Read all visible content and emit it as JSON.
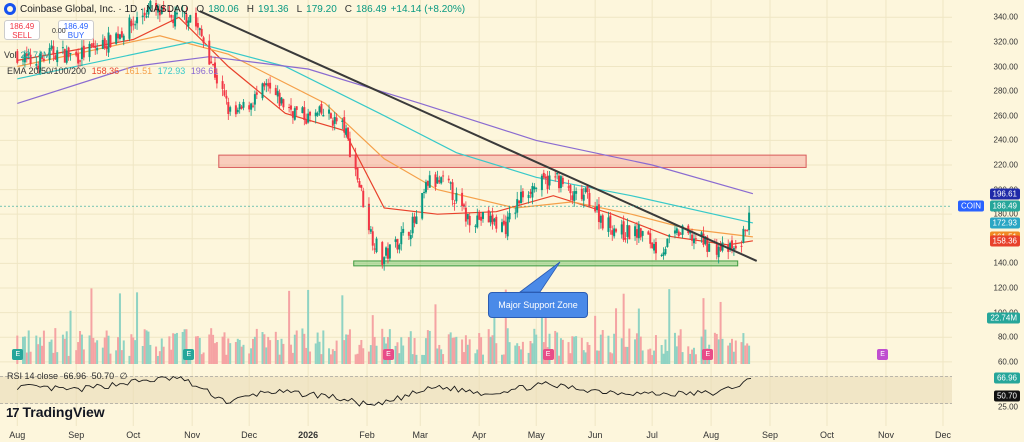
{
  "header": {
    "title": "Coinbase Global, Inc. · 1D · NASDAQ",
    "o_label": "O",
    "o": "180.06",
    "h_label": "H",
    "h": "191.36",
    "l_label": "L",
    "l": "179.20",
    "c_label": "C",
    "c": "186.49",
    "change": "+14.14 (+8.20%)"
  },
  "trade": {
    "sell_price": "186.49",
    "sell_label": "SELL",
    "buy_price": "186.49",
    "buy_label": "BUY",
    "spread": "0.00"
  },
  "volume": {
    "label": "Vol",
    "value": "22.74M"
  },
  "ema": {
    "label": "EMA 20/50/100/200",
    "v20": "158.36",
    "v50": "161.51",
    "v100": "172.93",
    "v200": "196.61",
    "c20": "#e8412b",
    "c50": "#f5a04a",
    "c100": "#37c9c9",
    "c200": "#8a6bd1"
  },
  "rsi": {
    "label": "RSI 14 close",
    "v1": "66.96",
    "v2": "50.70",
    "v3": "∅"
  },
  "annotation": {
    "text": "Major Support Zone"
  },
  "brand": {
    "mark": "17",
    "name": "TradingView"
  },
  "symbol_tag": "COIN",
  "event_markers": [
    {
      "label": "E",
      "color": "#26a69a",
      "x": "2025-08-01"
    },
    {
      "label": "E",
      "color": "#26a69a",
      "x": "2025-10-30"
    },
    {
      "label": "E",
      "color": "#e84c88",
      "x": "2026-02-12"
    },
    {
      "label": "E",
      "color": "#e84c88",
      "x": "2026-05-07"
    },
    {
      "label": "E",
      "color": "#e84c88",
      "x": "2026-07-30"
    },
    {
      "label": "E",
      "color": "#c04ed0",
      "x": "2026-10-30"
    }
  ],
  "chart_data": {
    "type": "line",
    "x_axis": {
      "ticks": [
        "Aug",
        "Sep",
        "Oct",
        "Nov",
        "Dec",
        "2026",
        "Feb",
        "Mar",
        "Apr",
        "May",
        "Jun",
        "Jul",
        "Aug",
        "Sep",
        "Oct",
        "Nov",
        "Dec"
      ],
      "tick_dates": [
        "2025-08-01",
        "2025-09-01",
        "2025-10-01",
        "2025-11-01",
        "2025-12-01",
        "2026-01-01",
        "2026-02-01",
        "2026-03-01",
        "2026-04-01",
        "2026-05-01",
        "2026-06-01",
        "2026-07-01",
        "2026-08-01",
        "2026-09-01",
        "2026-10-01",
        "2026-11-01",
        "2026-12-01"
      ],
      "range": [
        "2025-07-25",
        "2026-12-31"
      ]
    },
    "price_axis": {
      "ticks": [
        "340.00",
        "320.00",
        "300.00",
        "280.00",
        "260.00",
        "240.00",
        "220.00",
        "200.00",
        "180.00",
        "160.00",
        "140.00",
        "120.00",
        "100.00",
        "80.00",
        "60.00"
      ],
      "range": [
        55,
        350
      ],
      "tag_values": [
        {
          "label": "196.61",
          "value": 196.61,
          "color": "#1f2aa8"
        },
        {
          "label": "186.49",
          "value": 186.49,
          "color": "#26a69a"
        },
        {
          "label": "172.93",
          "value": 172.93,
          "color": "#2aa6c4"
        },
        {
          "label": "161.51",
          "value": 161.51,
          "color": "#f08a24"
        },
        {
          "label": "158.36",
          "value": 158.36,
          "color": "#e8412b"
        },
        {
          "label": "22.74M",
          "value": 96,
          "color": "#26a69a"
        }
      ]
    },
    "rsi_axis": {
      "ticks": [
        "66.96",
        "50.70",
        "25.00"
      ],
      "range": [
        15,
        85
      ],
      "band": [
        30,
        70
      ]
    },
    "close": [
      [
        "2025-08-01",
        310
      ],
      [
        "2025-08-10",
        302
      ],
      [
        "2025-08-20",
        312
      ],
      [
        "2025-09-01",
        308
      ],
      [
        "2025-09-15",
        318
      ],
      [
        "2025-10-01",
        335
      ],
      [
        "2025-10-10",
        348
      ],
      [
        "2025-10-20",
        338
      ],
      [
        "2025-10-31",
        342
      ],
      [
        "2025-11-08",
        318
      ],
      [
        "2025-11-15",
        285
      ],
      [
        "2025-11-22",
        258
      ],
      [
        "2025-12-01",
        270
      ],
      [
        "2025-12-10",
        282
      ],
      [
        "2025-12-20",
        268
      ],
      [
        "2026-01-01",
        258
      ],
      [
        "2026-01-10",
        262
      ],
      [
        "2026-01-20",
        250
      ],
      [
        "2026-01-27",
        210
      ],
      [
        "2026-02-03",
        165
      ],
      [
        "2026-02-09",
        143
      ],
      [
        "2026-02-18",
        160
      ],
      [
        "2026-02-27",
        175
      ],
      [
        "2026-03-05",
        206
      ],
      [
        "2026-03-15",
        205
      ],
      [
        "2026-03-25",
        178
      ],
      [
        "2026-04-05",
        176
      ],
      [
        "2026-04-15",
        170
      ],
      [
        "2026-04-25",
        200
      ],
      [
        "2026-05-05",
        205
      ],
      [
        "2026-05-12",
        210
      ],
      [
        "2026-05-20",
        193
      ],
      [
        "2026-05-28",
        195
      ],
      [
        "2026-06-05",
        175
      ],
      [
        "2026-06-15",
        165
      ],
      [
        "2026-06-25",
        165
      ],
      [
        "2026-07-05",
        150
      ],
      [
        "2026-07-15",
        165
      ],
      [
        "2026-07-25",
        160
      ],
      [
        "2026-08-05",
        152
      ],
      [
        "2026-08-15",
        150
      ],
      [
        "2026-08-20",
        172
      ],
      [
        "2026-08-23",
        186.49
      ]
    ],
    "ema_series": [
      {
        "name": "EMA 20",
        "color": "#e8412b",
        "points": [
          [
            "2025-08-01",
            305
          ],
          [
            "2025-10-01",
            322
          ],
          [
            "2025-10-25",
            340
          ],
          [
            "2025-11-20",
            300
          ],
          [
            "2025-12-20",
            262
          ],
          [
            "2026-01-20",
            248
          ],
          [
            "2026-02-10",
            185
          ],
          [
            "2026-03-10",
            180
          ],
          [
            "2026-04-10",
            182
          ],
          [
            "2026-05-10",
            195
          ],
          [
            "2026-06-10",
            180
          ],
          [
            "2026-07-10",
            162
          ],
          [
            "2026-08-10",
            155
          ],
          [
            "2026-08-23",
            158.36
          ]
        ]
      },
      {
        "name": "EMA 50",
        "color": "#f5a04a",
        "points": [
          [
            "2025-08-01",
            300
          ],
          [
            "2025-10-15",
            325
          ],
          [
            "2025-11-20",
            310
          ],
          [
            "2026-01-10",
            270
          ],
          [
            "2026-02-10",
            225
          ],
          [
            "2026-03-10",
            200
          ],
          [
            "2026-04-20",
            185
          ],
          [
            "2026-05-20",
            190
          ],
          [
            "2026-06-20",
            180
          ],
          [
            "2026-07-20",
            168
          ],
          [
            "2026-08-23",
            161.51
          ]
        ]
      },
      {
        "name": "EMA 100",
        "color": "#37c9c9",
        "points": [
          [
            "2025-08-01",
            290
          ],
          [
            "2025-11-01",
            320
          ],
          [
            "2025-12-20",
            300
          ],
          [
            "2026-02-10",
            260
          ],
          [
            "2026-03-20",
            230
          ],
          [
            "2026-05-01",
            210
          ],
          [
            "2026-06-20",
            195
          ],
          [
            "2026-08-23",
            172.93
          ]
        ]
      },
      {
        "name": "EMA 200",
        "color": "#8a6bd1",
        "points": [
          [
            "2025-08-01",
            270
          ],
          [
            "2025-10-01",
            300
          ],
          [
            "2025-11-10",
            308
          ],
          [
            "2026-01-01",
            298
          ],
          [
            "2026-03-01",
            270
          ],
          [
            "2026-05-01",
            240
          ],
          [
            "2026-07-01",
            220
          ],
          [
            "2026-08-23",
            196.61
          ]
        ]
      }
    ],
    "trendline": {
      "color": "#3a3a3a",
      "from": [
        "2025-11-05",
        345
      ],
      "to": [
        "2026-08-25",
        142
      ]
    },
    "resistance_zone": {
      "color": "#f08080",
      "from_x": "2025-11-15",
      "to_x": "2026-09-20",
      "low": 218,
      "high": 228
    },
    "support_zone": {
      "color": "#5bbf5b",
      "from_x": "2026-01-25",
      "to_x": "2026-08-15",
      "low": 138,
      "high": 142
    },
    "rsi_series": [
      [
        "2025-08-01",
        55
      ],
      [
        "2025-09-01",
        50
      ],
      [
        "2025-10-01",
        62
      ],
      [
        "2025-10-25",
        68
      ],
      [
        "2025-11-20",
        32
      ],
      [
        "2025-12-10",
        48
      ],
      [
        "2026-01-10",
        42
      ],
      [
        "2026-02-05",
        26
      ],
      [
        "2026-02-20",
        40
      ],
      [
        "2026-03-10",
        55
      ],
      [
        "2026-04-05",
        45
      ],
      [
        "2026-05-05",
        58
      ],
      [
        "2026-06-05",
        48
      ],
      [
        "2026-07-05",
        44
      ],
      [
        "2026-08-05",
        46
      ],
      [
        "2026-08-23",
        66.96
      ]
    ]
  }
}
